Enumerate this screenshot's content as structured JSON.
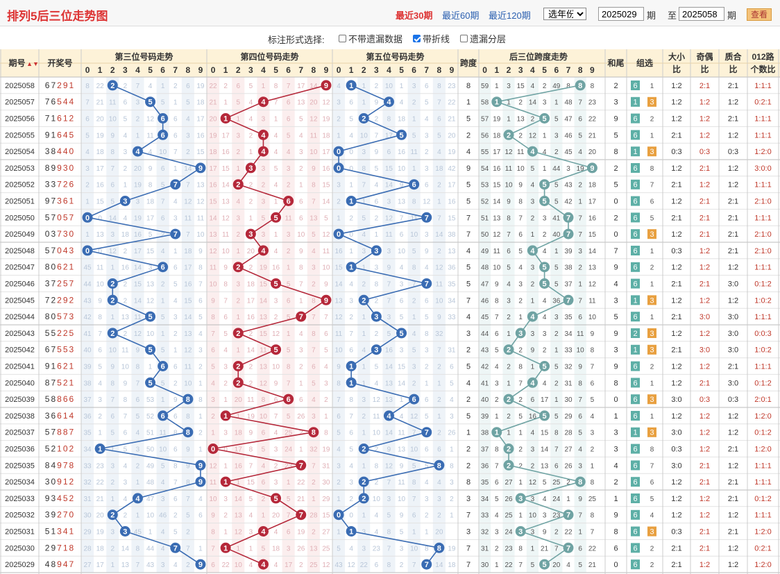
{
  "title": "排列5后三位走势图",
  "range_links": [
    {
      "label": "最近30期",
      "active": true
    },
    {
      "label": "最近60期",
      "active": false
    },
    {
      "label": "最近120期",
      "active": false
    }
  ],
  "year_select": "选年份",
  "from_issue": "2025029",
  "from_label": "期",
  "to_label": "至",
  "to_issue": "2025058",
  "to_suffix": "期",
  "query_button": "查看",
  "options": {
    "label": "标注形式选择:",
    "items": [
      {
        "label": "不带遗漏数据",
        "checked": false
      },
      {
        "label": "带折线",
        "checked": true
      },
      {
        "label": "遗漏分层",
        "checked": false
      }
    ]
  },
  "headers": {
    "issue": "期号",
    "issue_sort_icon": "sort-arrows-icon",
    "draw": "开奖号",
    "group3": "第三位号码走势",
    "group4": "第四位号码走势",
    "group5": "第五位号码走势",
    "span": "跨度",
    "spanTrend": "后三位跨度走势",
    "sumTail": "和尾",
    "groupSel": "组选",
    "bigSmall": [
      "大小",
      "比"
    ],
    "oddEven": [
      "奇偶",
      "比"
    ],
    "primeComp": [
      "质合",
      "比"
    ],
    "road": [
      "012路",
      "个数比"
    ],
    "digits": [
      "0",
      "1",
      "2",
      "3",
      "4",
      "5",
      "6",
      "7",
      "8",
      "9"
    ]
  },
  "colors": {
    "pos3": "#3a6cb3",
    "pos4": "#b5283a",
    "pos5": "#3a6cb3",
    "span": "#6fa3a3",
    "group6": "#5dafa6",
    "group3": "#e8a040",
    "red_text": "#c0392b"
  },
  "rows": [
    {
      "issue": "2025058",
      "draw": "67291",
      "b3": "8 22 2 7 4 1 2 6 19 5",
      "b4": "22 2 6 5 1 8 7 17 14 9",
      "b5": "4 1 2 10 1 3 6 8 23 47",
      "span": "8",
      "bs": "59 1 3 15 4 2 49 8 8 5",
      "sumTail": "2",
      "g": [
        "6",
        "1"
      ],
      "big": "1:2",
      "odd": "2:1",
      "prime": "2:1",
      "road": "1:1:1"
    },
    {
      "issue": "2025057",
      "draw": "76544",
      "b3": "7 21 11 6 3 5 1 5 18 4",
      "b4": "21 1 5 4 7 6 13 20 12",
      "b5": "3 6 1 9 4 2 5 7 22 46",
      "span": "1",
      "bs": "58 1 2 14 3 1 48 7 23 4",
      "sumTail": "3",
      "g": [
        "1",
        "3"
      ],
      "big": "1:2",
      "odd": "1:2",
      "prime": "1:2",
      "road": "0:2:1"
    },
    {
      "issue": "2025056",
      "draw": "71612",
      "b3": "6 20 10 5 2 12 6 4 17 3",
      "b4": "20 1 4 3 1 6 5 12 19 11",
      "b5": "2 5 2 8 18 1 4 6 21 45",
      "span": "5",
      "bs": "57 19 1 13 2 5 47 6 22 3",
      "sumTail": "9",
      "g": [
        "6",
        "2"
      ],
      "big": "1:2",
      "odd": "1:2",
      "prime": "2:1",
      "road": "1:1:1"
    },
    {
      "issue": "2025055",
      "draw": "91645",
      "b3": "5 19 9 4 1 11 6 3 16 2",
      "b4": "19 17 3 2 4 5 4 11 18 10",
      "b5": "1 4 10 7 17 5 3 5 20 44",
      "span": "2",
      "bs": "56 18 2 12 1 3 46 5 21 2",
      "sumTail": "5",
      "g": [
        "6",
        "1"
      ],
      "big": "2:1",
      "odd": "1:2",
      "prime": "1:2",
      "road": "1:1:1"
    },
    {
      "issue": "2025054",
      "draw": "38440",
      "b3": "4 18 8 3 4 10 7 2 15 1",
      "b4": "18 16 2 1 4 4 3 10 17 9",
      "b5": "0 3 9 6 16 11 2 4 19 43",
      "span": "4",
      "bs": "55 17 12 11 4 2 45 4 20 1",
      "sumTail": "8",
      "g": [
        "1",
        "3"
      ],
      "big": "0:3",
      "odd": "0:3",
      "prime": "0:3",
      "road": "1:2:0"
    },
    {
      "issue": "2025053",
      "draw": "89930",
      "b3": "3 17 7 2 20 9 6 1 14 9",
      "b4": "17 15 1 3 5 3 2 9 16 8",
      "b5": "0 8 5 15 10 1 3 18 42 ",
      "span": "9",
      "bs": "54 16 11 10 5 1 44 3 19 9",
      "sumTail": "2",
      "g": [
        "6",
        "8"
      ],
      "big": "1:2",
      "odd": "2:1",
      "prime": "1:2",
      "road": "3:0:0"
    },
    {
      "issue": "2025052",
      "draw": "33726",
      "b3": "2 16 6 1 19 8 5 7 13 17",
      "b4": "16 14 2 2 4 2 1 8 15 7",
      "b5": "3 1 7 4 14 9 6 2 17 41",
      "span": "5",
      "bs": "53 15 10 9 4 5 43 2 18 44",
      "sumTail": "5",
      "g": [
        "6",
        "7"
      ],
      "big": "2:1",
      "odd": "1:2",
      "prime": "1:2",
      "road": "1:1:1"
    },
    {
      "issue": "2025051",
      "draw": "97361",
      "b3": "1 15 5 3 18 7 4 12 12 16",
      "b4": "15 13 4 2 3 1 6 7 14 6",
      "b5": "2 1 6 3 13 8 12 1 16 40",
      "span": "5",
      "bs": "52 14 9 8 3 5 42 1 17 43",
      "sumTail": "0",
      "g": [
        "6",
        "6"
      ],
      "big": "1:2",
      "odd": "2:1",
      "prime": "2:1",
      "road": "2:1:0"
    },
    {
      "issue": "2025050",
      "draw": "57057",
      "b3": "0 14 4 19 17 6 3 11 11 15",
      "b4": "14 12 3 1 5 11 6 13 5",
      "b5": "1 2 5 2 12 7 11 7 15 39",
      "span": "7",
      "bs": "51 13 8 7 2 3 41 7 16 42",
      "sumTail": "2",
      "g": [
        "6",
        "5"
      ],
      "big": "2:1",
      "odd": "2:1",
      "prime": "2:1",
      "road": "1:1:1"
    },
    {
      "issue": "2025049",
      "draw": "03730",
      "b3": "1 13 3 18 16 5 2 7 10 14",
      "b4": "13 11 2 3 1 3 10 5 12 4",
      "b5": "0 4 1 11 6 10 3 14 38",
      "span": "7",
      "bs": "50 12 7 6 1 2 40 7 15 41",
      "sumTail": "0",
      "g": [
        "6",
        "3"
      ],
      "big": "1:2",
      "odd": "2:1",
      "prime": "2:1",
      "road": "2:1:0"
    },
    {
      "issue": "2025048",
      "draw": "57043",
      "b3": "0 12 2 17 15 4 1 18 9 13",
      "b4": "12 10 1 20 4 2 9 4 11 3",
      "b5": "16 1 3 3 10 5 9 2 13 37",
      "span": "4",
      "bs": "49 11 6 5 4 1 39 3 14 40",
      "sumTail": "7",
      "g": [
        "6",
        "1"
      ],
      "big": "0:3",
      "odd": "1:2",
      "prime": "2:1",
      "road": "2:1:0"
    },
    {
      "issue": "2025047",
      "draw": "80621",
      "b3": "45 11 1 16 14 3 6 17 8 12",
      "b4": "11 9 2 19 16 1 8 3 10 2",
      "b5": "15 1 3 9 4 8 4 12 36",
      "span": "5",
      "bs": "48 10 5 4 3 5 38 2 13 39",
      "sumTail": "9",
      "g": [
        "6",
        "2"
      ],
      "big": "1:2",
      "odd": "1:2",
      "prime": "1:2",
      "road": "1:1:1"
    },
    {
      "issue": "2025046",
      "draw": "37257",
      "b3": "44 10 2 15 13 2 5 16 7 11",
      "b4": "10 8 3 18 15 5 7 2 9 1",
      "b5": "14 4 2 8 7 3 7 11 35",
      "span": "5",
      "bs": "47 9 4 3 2 5 37 1 12 38",
      "sumTail": "4",
      "g": [
        "6",
        "1"
      ],
      "big": "2:1",
      "odd": "2:1",
      "prime": "3:0",
      "road": "0:1:2"
    },
    {
      "issue": "2025045",
      "draw": "72292",
      "b3": "43 9 2 14 12 1 4 15 6 10",
      "b4": "9 7 2 17 14 3 6 1 8 9",
      "b5": "13 3 2 7 6 2 6 10 34",
      "span": "7",
      "bs": "46 8 3 2 1 4 36 7 11 37",
      "sumTail": "3",
      "g": [
        "1",
        "3"
      ],
      "big": "1:2",
      "odd": "1:2",
      "prime": "1:2",
      "road": "1:0:2"
    },
    {
      "issue": "2025044",
      "draw": "80573",
      "b3": "42 8 1 13 11 5 3 14 5 9",
      "b4": "8 6 1 16 13 2 5 7 7 27",
      "b5": "12 2 1 3 5 1 5 9 33",
      "span": "4",
      "bs": "45 7 2 1 4 3 35 6 10 36",
      "sumTail": "5",
      "g": [
        "6",
        "1"
      ],
      "big": "2:1",
      "odd": "3:0",
      "prime": "3:0",
      "road": "1:1:1"
    },
    {
      "issue": "2025043",
      "draw": "55225",
      "b3": "41 7 2 12 10 1 2 13 4 8",
      "b4": "7 5 2 15 12 1 4 8 6 26",
      "b5": "11 7 1 2 5 4 8 32 ",
      "span": "3",
      "bs": "44 6 1 3 3 2 34 11 9 35",
      "sumTail": "9",
      "g": [
        "2",
        "3"
      ],
      "big": "1:2",
      "odd": "1:2",
      "prime": "3:0",
      "road": "0:0:3"
    },
    {
      "issue": "2025042",
      "draw": "67553",
      "b3": "40 6 10 11 9 5 1 12 3 7",
      "b4": "6 4 1 14 11 5 3 7 5 25",
      "b5": "10 6 4 16 3 5 3 7 31",
      "span": "2",
      "bs": "43 5 2 9 2 1 33 10 8 34",
      "sumTail": "3",
      "g": [
        "1",
        "3"
      ],
      "big": "2:1",
      "odd": "3:0",
      "prime": "3:0",
      "road": "1:0:2"
    },
    {
      "issue": "2025041",
      "draw": "91621",
      "b3": "39 5 9 10 8 1 6 11 2 6",
      "b4": "5 3 2 13 10 8 2 6 4 24",
      "b5": "9 1 5 14 15 3 2 2 6 30",
      "span": "5",
      "bs": "42 4 2 8 1 5 32 9 7 33",
      "sumTail": "9",
      "g": [
        "6",
        "2"
      ],
      "big": "1:2",
      "odd": "1:2",
      "prime": "2:1",
      "road": "1:1:1"
    },
    {
      "issue": "2025040",
      "draw": "87521",
      "b3": "38 4 8 9 7 5 2 10 1 5",
      "b4": "4 2 2 12 9 7 1 5 3 23",
      "b5": "8 1 4 13 14 2 1 1 5 29",
      "span": "4",
      "bs": "41 3 1 7 4 2 31 8 6 32",
      "sumTail": "8",
      "g": [
        "6",
        "1"
      ],
      "big": "1:2",
      "odd": "2:1",
      "prime": "3:0",
      "road": "0:1:2"
    },
    {
      "issue": "2025039",
      "draw": "58866",
      "b3": "37 3 7 8 6 53 1 9 8 4",
      "b4": "3 1 20 11 8 6 6 4 2 22",
      "b5": "7 8 3 12 13 1 6 2 4 28",
      "span": "2",
      "bs": "40 2 2 6 17 1 30 7 5 31",
      "sumTail": "0",
      "g": [
        "6",
        "3"
      ],
      "big": "3:0",
      "odd": "0:3",
      "prime": "0:3",
      "road": "2:0:1"
    },
    {
      "issue": "2025038",
      "draw": "36614",
      "b3": "36 2 6 7 5 52 6 8 1 3",
      "b4": "2 1 19 10 7 5 26 3 1 21",
      "b5": "6 7 2 11 4 12 5 1 3 27",
      "span": "5",
      "bs": "39 1 2 5 16 5 29 6 4 30",
      "sumTail": "1",
      "g": [
        "6",
        "1"
      ],
      "big": "1:2",
      "odd": "1:2",
      "prime": "1:2",
      "road": "1:2:0"
    },
    {
      "issue": "2025037",
      "draw": "57887",
      "b3": "35 1 5 6 4 51 11 8 2",
      "b4": "1 3 18 9 6 4 25 2 8 20",
      "b5": "5 6 1 10 14 11 7 2 26 ",
      "span": "1",
      "bs": "38 1 1 4 15 8 28 5 3 29",
      "sumTail": "3",
      "g": [
        "1",
        "3"
      ],
      "big": "3:0",
      "odd": "1:2",
      "prime": "1:2",
      "road": "0:1:2"
    },
    {
      "issue": "2025036",
      "draw": "52102",
      "b3": "34 1 5 3 50 10 6 9 1",
      "b4": "0 17 8 5 3 24 1 32 19",
      "b5": "4 5 2 9 13 10 6 6 1 25",
      "span": "2",
      "bs": "37 8 2 3 14 7 27 4 2 28",
      "sumTail": "3",
      "g": [
        "6",
        "8"
      ],
      "big": "0:3",
      "odd": "1:2",
      "prime": "2:1",
      "road": "1:2:0"
    },
    {
      "issue": "2025035",
      "draw": "84978",
      "b3": "33 23 3 4 2 49 5 8 9",
      "b4": "12 1 16 7 4 2 23 7 31 18",
      "b5": "3 4 1 8 12 9 5 5 8 24",
      "span": "2",
      "bs": "36 7 2 2 13 6 26 3 1 27",
      "sumTail": "4",
      "g": [
        "6",
        "7"
      ],
      "big": "3:0",
      "odd": "2:1",
      "prime": "1:2",
      "road": "1:1:1"
    },
    {
      "issue": "2025034",
      "draw": "30912",
      "b3": "32 22 2 3 1 48 4 7 8 9",
      "b4": "11 1 15 6 3 1 22 2 30 17",
      "b5": "2 3 2 7 11 8 4 4 3 23",
      "span": "8",
      "bs": "35 6 27 1 12 5 25 2 8 26",
      "sumTail": "2",
      "g": [
        "6",
        "6"
      ],
      "big": "1:2",
      "odd": "2:1",
      "prime": "2:1",
      "road": "1:1:1"
    },
    {
      "issue": "2025033",
      "draw": "93452",
      "b3": "31 21 1 4 47 3 6 7 4",
      "b4": "10 3 14 5 2 5 21 1 29 16",
      "b5": "1 2 10 3 10 7 3 3 2 22",
      "span": "3",
      "bs": "34 5 26 3 4 24 1 9 25",
      "sumTail": "1",
      "g": [
        "6",
        "5"
      ],
      "big": "1:2",
      "odd": "1:2",
      "prime": "2:1",
      "road": "0:1:2"
    },
    {
      "issue": "2025032",
      "draw": "39270",
      "b3": "30 20 2 1 10 46 2 5 6 3",
      "b4": "9 2 13 4 1 20 7 28 15",
      "b5": "0 1 4 5 9 6 2 2 1 21",
      "span": "7",
      "bs": "33 4 25 1 10 3 23 7 8 24",
      "sumTail": "9",
      "g": [
        "6",
        "4"
      ],
      "big": "1:2",
      "odd": "1:2",
      "prime": "1:2",
      "road": "1:1:1"
    },
    {
      "issue": "2025031",
      "draw": "51341",
      "b3": "29 19 3 45 1 4 5 2",
      "b4": "8 1 12 3 4 6 19 2 27 14",
      "b5": "1 3 4 8 5 1 1 20 ",
      "span": "3",
      "bs": "32 3 24 3 9 2 22 1 7 23",
      "sumTail": "8",
      "g": [
        "6",
        "3"
      ],
      "big": "0:3",
      "odd": "2:1",
      "prime": "2:1",
      "road": "1:2:0"
    },
    {
      "issue": "2025030",
      "draw": "29718",
      "b3": "28 18 2 14 8 44 4 7 1",
      "b4": "7 1 1 5 18 3 26 13 25 ",
      "b5": "5 4 3 23 7 3 10 8 19",
      "span": "7",
      "bs": "31 2 23 8 1 21 7 6 22",
      "sumTail": "6",
      "g": [
        "6",
        "2"
      ],
      "big": "2:1",
      "odd": "2:1",
      "prime": "1:2",
      "road": "0:2:1"
    },
    {
      "issue": "2025029",
      "draw": "48947",
      "b3": "27 17 1 13 7 43 3 4 2 9",
      "b4": "6 22 10 4 4 17 2 25 12",
      "b5": "43 12 22 6 8 2 7 14 18",
      "span": "7",
      "bs": "30 1 22 7 5 20 4 5 21",
      "sumTail": "0",
      "g": [
        "6",
        "2"
      ],
      "big": "2:1",
      "odd": "1:2",
      "prime": "1:2",
      "road": "1:2:0"
    }
  ]
}
